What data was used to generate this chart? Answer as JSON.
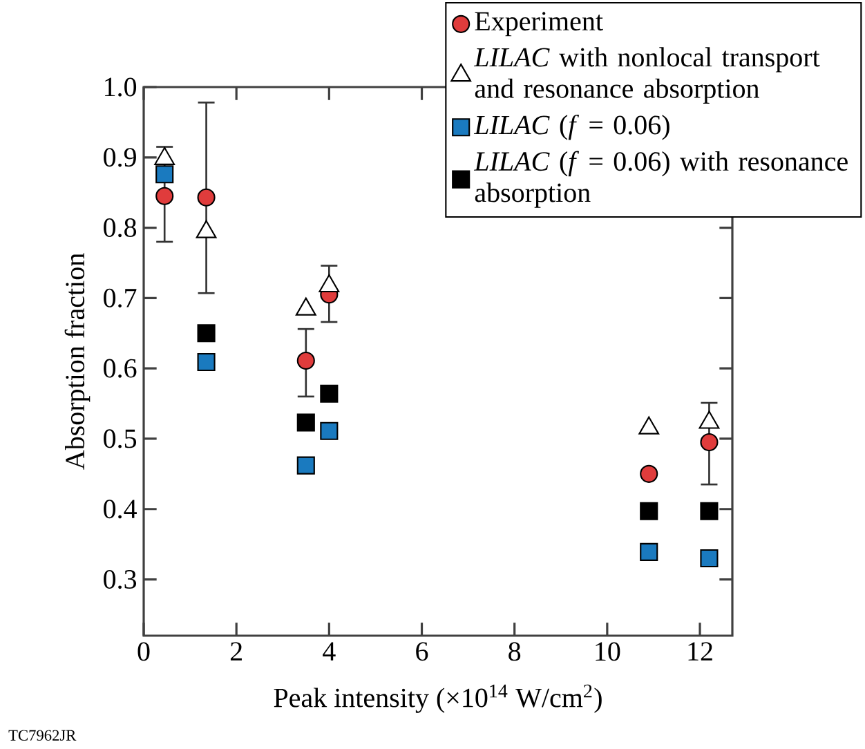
{
  "chart_data": {
    "type": "scatter",
    "xlabel": "Peak intensity (×10$^{14}$ W/cm$^{2}$)",
    "ylabel": "Absorption fraction",
    "xlim": [
      0,
      12.7
    ],
    "ylim": [
      0.22,
      1.0
    ],
    "xticks": [
      0,
      2,
      4,
      6,
      8,
      10,
      12
    ],
    "yticks": [
      0.3,
      0.4,
      0.5,
      0.6,
      0.7,
      0.8,
      0.9,
      {
        "value": 1.0,
        "label": "1.0"
      }
    ],
    "grid": false,
    "legend": "top right",
    "annotations": [
      "TC7962JR"
    ],
    "series": [
      {
        "name": "Experiment",
        "color": "#e03c3c",
        "marker": "circle",
        "x": [
          0.45,
          1.35,
          3.5,
          4.0,
          10.9,
          12.2
        ],
        "values": [
          0.845,
          0.843,
          0.611,
          0.705,
          0.45,
          0.495
        ],
        "errors": [
          [
            0.78,
            0.915
          ],
          [
            0.707,
            0.978
          ],
          [
            0.56,
            0.656
          ],
          [
            0.666,
            0.746
          ],
          null,
          [
            0.435,
            0.551
          ]
        ]
      },
      {
        "name": "*LILAC* with nonlocal transport and resonance absorption",
        "color": "#ffffff",
        "marker": "triangle",
        "x": [
          0.45,
          1.35,
          3.5,
          4.0,
          10.9,
          12.2
        ],
        "values": [
          0.898,
          0.794,
          0.684,
          0.717,
          0.515,
          0.523
        ]
      },
      {
        "name": "*LILAC* (*f* = 0.06)",
        "color": "#1a7abf",
        "marker": "square",
        "x": [
          0.45,
          1.35,
          3.5,
          4.0,
          10.9,
          12.2
        ],
        "values": [
          0.876,
          0.609,
          0.462,
          0.511,
          0.339,
          0.33
        ]
      },
      {
        "name": "*LILAC* (*f* = 0.06) with resonance absorption",
        "color": "#000000",
        "marker": "square",
        "x": [
          1.35,
          3.5,
          4.0,
          10.9,
          12.2
        ],
        "values": [
          0.65,
          0.523,
          0.564,
          0.397,
          0.397
        ]
      }
    ]
  }
}
